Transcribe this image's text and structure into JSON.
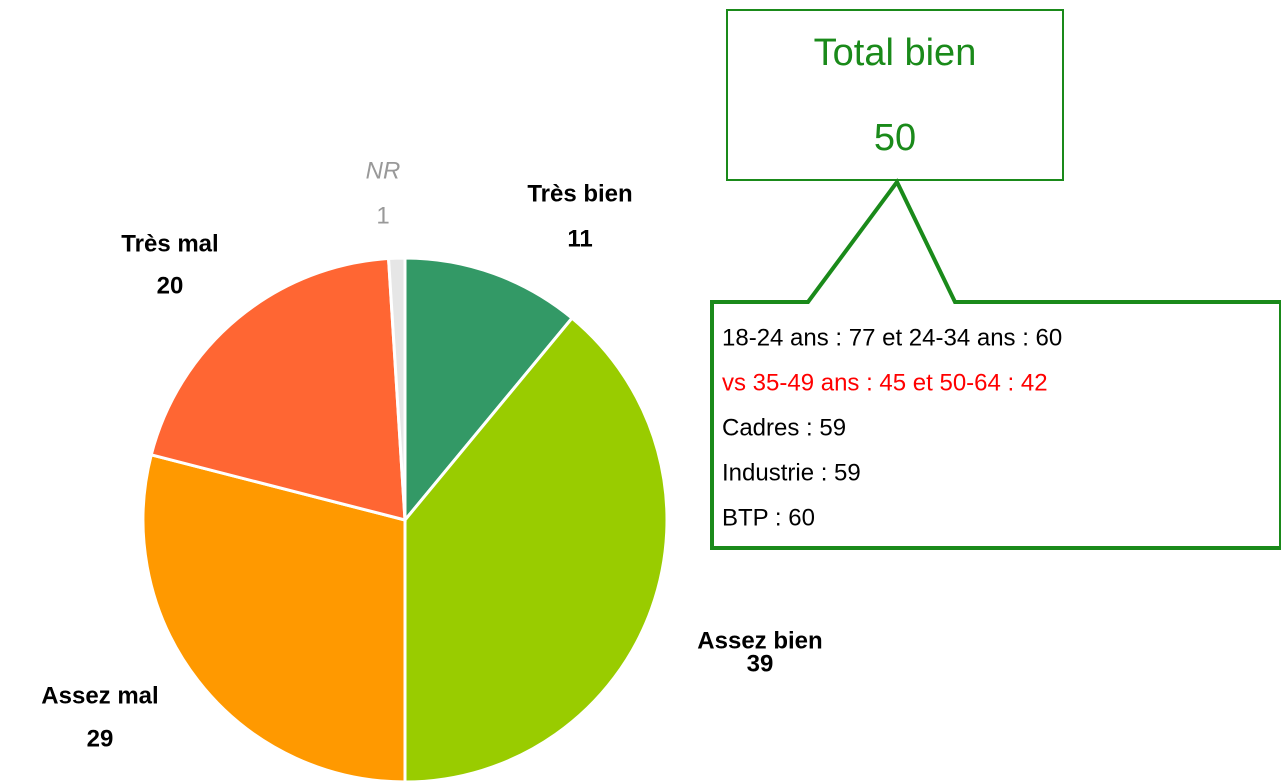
{
  "chart_data": {
    "type": "pie",
    "categories": [
      "Très bien",
      "Assez bien",
      "Assez mal",
      "Très mal",
      "NR"
    ],
    "values": [
      11,
      39,
      29,
      20,
      1
    ],
    "colors": [
      "#339966",
      "#99cc00",
      "#ff9900",
      "#ff6633",
      "#e6e6e6"
    ],
    "callout": {
      "title": "Total bien",
      "value": 50,
      "lines": [
        "18-24 ans : 77  et 24-34 ans : 60",
        "vs 35-49 ans : 45 et 50-64 : 42",
        "Cadres : 59",
        "Industrie : 59",
        "BTP : 60"
      ],
      "line_colors": [
        "#000000",
        "#ff0000",
        "#000000",
        "#000000",
        "#000000"
      ],
      "color": "#1a8a1a"
    }
  }
}
